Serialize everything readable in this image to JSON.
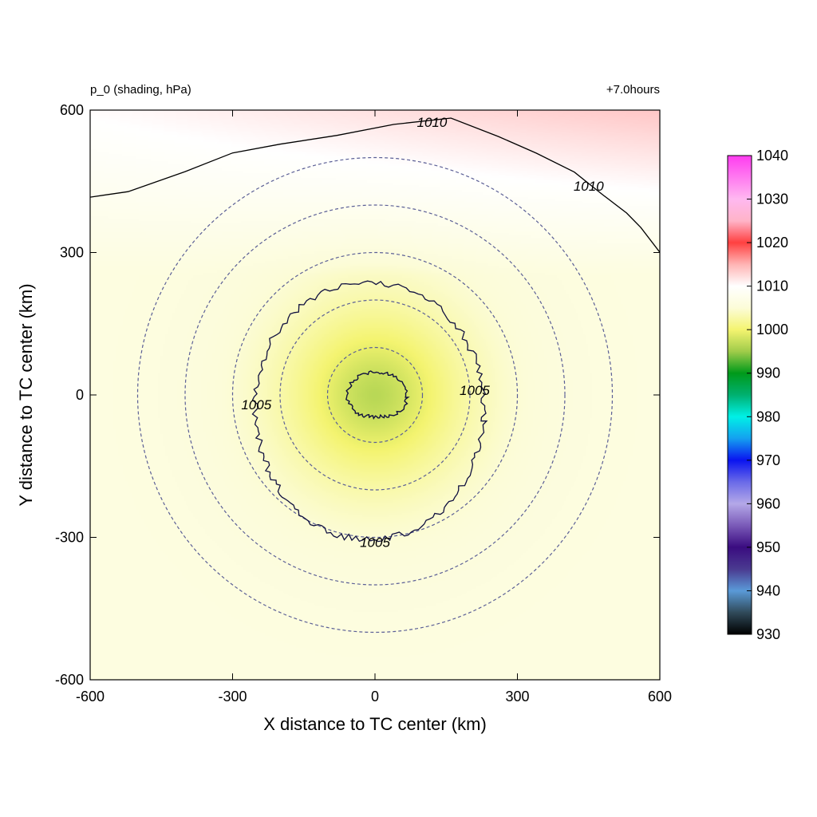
{
  "chart_data": {
    "type": "heatmap",
    "title_left": "p_0 (shading, hPa)",
    "title_right": "+7.0hours",
    "xlabel": "X distance to TC center (km)",
    "ylabel": "Y distance to TC center (km)",
    "xlim": [
      -600,
      600
    ],
    "ylim": [
      -600,
      600
    ],
    "xticks": [
      "-600",
      "-300",
      "0",
      "300",
      "600"
    ],
    "yticks": [
      "600",
      "300",
      "0",
      "-300",
      "-600"
    ],
    "colorbar": {
      "ticks": [
        "1040",
        "1030",
        "1020",
        "1010",
        "1000",
        "990",
        "980",
        "970",
        "960",
        "950",
        "940",
        "930"
      ],
      "range": [
        930,
        1040
      ],
      "stops": [
        {
          "v": 930,
          "c": "#000000"
        },
        {
          "v": 935,
          "c": "#304a5a"
        },
        {
          "v": 940,
          "c": "#5a9ad8"
        },
        {
          "v": 945,
          "c": "#4a3a90"
        },
        {
          "v": 950,
          "c": "#3a0c80"
        },
        {
          "v": 955,
          "c": "#7a5ab8"
        },
        {
          "v": 960,
          "c": "#b4a8e8"
        },
        {
          "v": 965,
          "c": "#6a6ae8"
        },
        {
          "v": 970,
          "c": "#0a14f0"
        },
        {
          "v": 975,
          "c": "#14a0f0"
        },
        {
          "v": 980,
          "c": "#00f0e6"
        },
        {
          "v": 985,
          "c": "#00b070"
        },
        {
          "v": 990,
          "c": "#009a1a"
        },
        {
          "v": 995,
          "c": "#a0cc4a"
        },
        {
          "v": 1000,
          "c": "#f4f470"
        },
        {
          "v": 1005,
          "c": "#fcfcd8"
        },
        {
          "v": 1010,
          "c": "#ffffff"
        },
        {
          "v": 1015,
          "c": "#ffb4b4"
        },
        {
          "v": 1020,
          "c": "#ff4040"
        },
        {
          "v": 1025,
          "c": "#ffb4c8"
        },
        {
          "v": 1030,
          "c": "#ffb8f0"
        },
        {
          "v": 1040,
          "c": "#ff3cf0"
        }
      ]
    },
    "field": {
      "description_units": "hPa",
      "center_min": 996.5,
      "center_pressure_at_100km": 1001.0,
      "ambient": 1006.0,
      "north_max": 1012.0
    },
    "contours": [
      {
        "level": "1005",
        "labels": [
          [
            -250,
            -20
          ],
          [
            210,
            10
          ],
          [
            0,
            -310
          ]
        ]
      },
      {
        "level": "1010",
        "labels": [
          [
            120,
            575
          ],
          [
            450,
            440
          ]
        ]
      }
    ],
    "radius_rings_km": [
      100,
      200,
      300,
      400,
      500
    ],
    "inner_contour": {
      "level": 1000
    }
  }
}
